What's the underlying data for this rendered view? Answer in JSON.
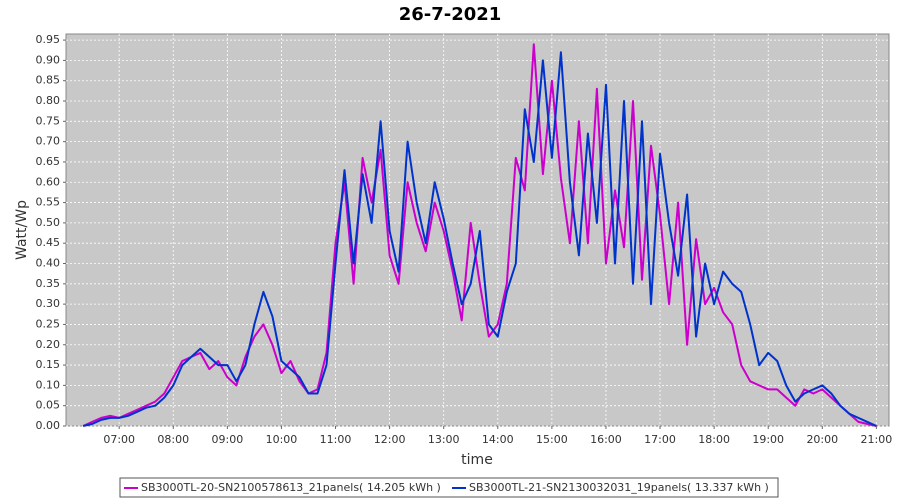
{
  "chart_data": {
    "type": "line",
    "title": "26-7-2021",
    "x_label": "time",
    "y_label": "Watt/Wp",
    "x": [
      "06:20",
      "06:30",
      "06:40",
      "06:50",
      "07:00",
      "07:10",
      "07:20",
      "07:30",
      "07:40",
      "07:50",
      "08:00",
      "08:10",
      "08:20",
      "08:30",
      "08:40",
      "08:50",
      "09:00",
      "09:10",
      "09:20",
      "09:30",
      "09:40",
      "09:50",
      "10:00",
      "10:10",
      "10:20",
      "10:30",
      "10:40",
      "10:50",
      "11:00",
      "11:10",
      "11:20",
      "11:30",
      "11:40",
      "11:50",
      "12:00",
      "12:10",
      "12:20",
      "12:30",
      "12:40",
      "12:50",
      "13:00",
      "13:10",
      "13:20",
      "13:30",
      "13:40",
      "13:50",
      "14:00",
      "14:10",
      "14:20",
      "14:30",
      "14:40",
      "14:50",
      "15:00",
      "15:10",
      "15:20",
      "15:30",
      "15:40",
      "15:50",
      "16:00",
      "16:10",
      "16:20",
      "16:30",
      "16:40",
      "16:50",
      "17:00",
      "17:10",
      "17:20",
      "17:30",
      "17:40",
      "17:50",
      "18:00",
      "18:10",
      "18:20",
      "18:30",
      "18:40",
      "18:50",
      "19:00",
      "19:10",
      "19:20",
      "19:30",
      "19:40",
      "19:50",
      "20:00",
      "20:10",
      "20:20",
      "20:30",
      "20:40",
      "20:50",
      "21:00"
    ],
    "series": [
      {
        "name": "SB3000TL-20-SN2100578613_21panels( 14.205 kWh )",
        "color": "#cc00cc",
        "values": [
          0,
          0.01,
          0.02,
          0.025,
          0.02,
          0.03,
          0.04,
          0.05,
          0.06,
          0.08,
          0.12,
          0.16,
          0.17,
          0.18,
          0.14,
          0.16,
          0.12,
          0.1,
          0.17,
          0.22,
          0.25,
          0.2,
          0.13,
          0.16,
          0.11,
          0.08,
          0.09,
          0.18,
          0.45,
          0.6,
          0.35,
          0.66,
          0.55,
          0.68,
          0.42,
          0.35,
          0.6,
          0.5,
          0.43,
          0.55,
          0.48,
          0.38,
          0.26,
          0.5,
          0.35,
          0.22,
          0.25,
          0.35,
          0.66,
          0.58,
          0.94,
          0.62,
          0.85,
          0.61,
          0.45,
          0.75,
          0.45,
          0.83,
          0.4,
          0.58,
          0.44,
          0.8,
          0.36,
          0.69,
          0.52,
          0.3,
          0.55,
          0.2,
          0.46,
          0.3,
          0.34,
          0.28,
          0.25,
          0.15,
          0.11,
          0.1,
          0.09,
          0.09,
          0.07,
          0.05,
          0.09,
          0.08,
          0.09,
          0.07,
          0.05,
          0.03,
          0.01,
          0.005,
          0
        ]
      },
      {
        "name": "SB3000TL-21-SN2130032031_19panels( 13.337 kWh )",
        "color": "#0033cc",
        "values": [
          0,
          0.005,
          0.015,
          0.02,
          0.02,
          0.025,
          0.035,
          0.045,
          0.05,
          0.07,
          0.1,
          0.15,
          0.17,
          0.19,
          0.17,
          0.15,
          0.15,
          0.11,
          0.15,
          0.25,
          0.33,
          0.27,
          0.16,
          0.14,
          0.12,
          0.08,
          0.08,
          0.15,
          0.4,
          0.63,
          0.4,
          0.62,
          0.5,
          0.75,
          0.48,
          0.38,
          0.7,
          0.55,
          0.45,
          0.6,
          0.51,
          0.4,
          0.3,
          0.35,
          0.48,
          0.25,
          0.22,
          0.33,
          0.4,
          0.78,
          0.65,
          0.9,
          0.66,
          0.92,
          0.6,
          0.42,
          0.72,
          0.5,
          0.84,
          0.4,
          0.8,
          0.35,
          0.75,
          0.3,
          0.67,
          0.5,
          0.37,
          0.57,
          0.22,
          0.4,
          0.3,
          0.38,
          0.35,
          0.33,
          0.25,
          0.15,
          0.18,
          0.16,
          0.1,
          0.06,
          0.08,
          0.09,
          0.1,
          0.08,
          0.05,
          0.03,
          0.02,
          0.01,
          0
        ]
      }
    ],
    "xlim": [
      "06:01",
      "21:14"
    ],
    "xticks": [
      "07:00",
      "08:00",
      "09:00",
      "10:00",
      "11:00",
      "12:00",
      "13:00",
      "14:00",
      "15:00",
      "16:00",
      "17:00",
      "18:00",
      "19:00",
      "20:00",
      "21:00"
    ],
    "ylim": [
      0,
      0.965
    ],
    "yticks": [
      {
        "value": 0,
        "label": "0.00"
      },
      0.05,
      {
        "value": 0.1,
        "label": "0.10"
      },
      0.15,
      {
        "value": 0.2,
        "label": "0.20"
      },
      0.25,
      {
        "value": 0.3,
        "label": "0.30"
      },
      0.35,
      {
        "value": 0.4,
        "label": "0.40"
      },
      0.45,
      {
        "value": 0.5,
        "label": "0.50"
      },
      0.55,
      {
        "value": 0.6,
        "label": "0.60"
      },
      0.65,
      {
        "value": 0.7,
        "label": "0.70"
      },
      0.75,
      {
        "value": 0.8,
        "label": "0.80"
      },
      0.85,
      {
        "value": 0.9,
        "label": "0.90"
      },
      0.95
    ],
    "grid": true
  }
}
